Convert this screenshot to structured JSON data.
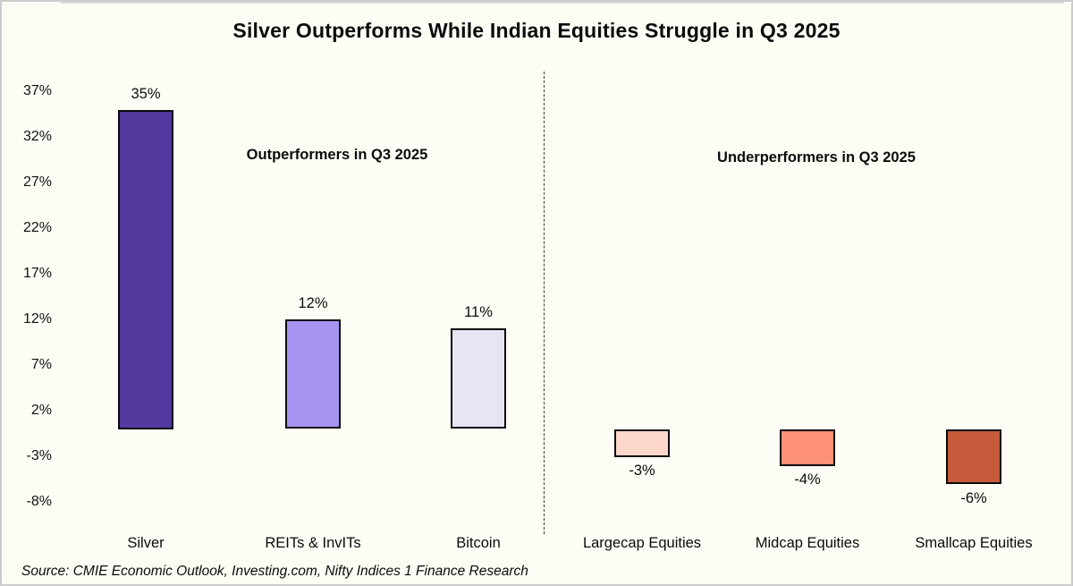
{
  "chart_data": {
    "type": "bar",
    "title": "Silver Outperforms While Indian Equities Struggle in Q3 2025",
    "categories": [
      "Silver",
      "REITs & InvITs",
      "Bitcoin",
      "Largecap Equities",
      "Midcap Equities",
      "Smallcap Equities"
    ],
    "values": [
      35,
      12,
      11,
      -3,
      -4,
      -6
    ],
    "data_labels": [
      "35%",
      "12%",
      "11%",
      "-3%",
      "-4%",
      "-6%"
    ],
    "bar_colors": [
      "#53399E",
      "#A794F0",
      "#E7E4F4",
      "#FDD7CC",
      "#FD9179",
      "#C65B3C"
    ],
    "bar_border_color": "#0B0B0B",
    "y_tick_labels": [
      "37%",
      "32%",
      "27%",
      "22%",
      "17%",
      "12%",
      "7%",
      "2%",
      "-3%",
      "-8%"
    ],
    "y_tick_values": [
      37,
      32,
      27,
      22,
      17,
      12,
      7,
      2,
      -3,
      -8
    ],
    "ylim": [
      -10,
      39
    ],
    "xlabel": "",
    "ylabel": "",
    "grid": false,
    "legend": null,
    "annotations": [
      "Outperformers in Q3 2025",
      "Underperformers in Q3 2025"
    ],
    "divider_between": [
      "Bitcoin",
      "Largecap Equities"
    ]
  },
  "source": "Source: CMIE Economic Outlook, Investing.com, Nifty Indices 1 Finance Research",
  "colors": {
    "background": "#FDFCF5",
    "outer_border": "#CBCBCB",
    "zero_axis_line": "#D9D9D9",
    "divider_line": "#3C3C3C",
    "text": "#0B0B0B"
  }
}
